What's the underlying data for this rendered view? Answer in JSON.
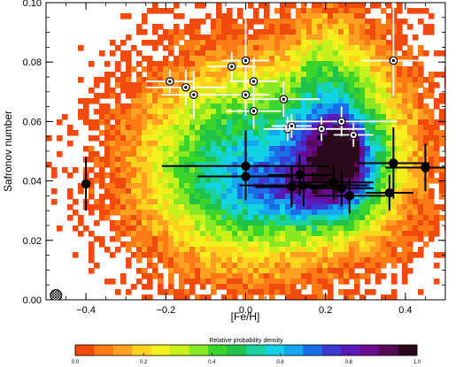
{
  "chart_data": {
    "type": "scatter",
    "xlabel": "[Fe/H]",
    "ylabel": "Safronov number",
    "xlim": [
      -0.5,
      0.5
    ],
    "ylim": [
      0.0,
      0.1
    ],
    "xticks": [
      -0.4,
      -0.2,
      0.0,
      0.2,
      0.4
    ],
    "xtick_labels": [
      "−0.4",
      "−0.2",
      "0.0",
      "0.2",
      "0.4"
    ],
    "yticks": [
      0.0,
      0.02,
      0.04,
      0.06,
      0.08,
      0.1
    ],
    "ytick_labels": [
      "0.00",
      "0.02",
      "0.04",
      "0.06",
      "0.08",
      "0.10"
    ],
    "density_background": {
      "blobs": [
        {
          "x": 0.07,
          "y": 0.048,
          "sx": 0.24,
          "sy": 0.026,
          "w": 0.7
        },
        {
          "x": 0.23,
          "y": 0.044,
          "sx": 0.08,
          "sy": 0.012,
          "w": 0.55
        },
        {
          "x": 0.25,
          "y": 0.05,
          "sx": 0.03,
          "sy": 0.006,
          "w": 0.4
        },
        {
          "x": 0.2,
          "y": 0.068,
          "sx": 0.06,
          "sy": 0.02,
          "w": 0.3
        },
        {
          "x": 0.1,
          "y": 0.035,
          "sx": 0.12,
          "sy": 0.008,
          "w": 0.25
        },
        {
          "x": -0.05,
          "y": 0.04,
          "sx": 0.15,
          "sy": 0.02,
          "w": 0.25
        },
        {
          "x": 0.3,
          "y": 0.06,
          "sx": 0.08,
          "sy": 0.025,
          "w": 0.2
        }
      ]
    },
    "colorbar": {
      "title": "Relative probability density",
      "ticks": [
        0.0,
        0.2,
        0.4,
        0.6,
        0.8,
        1.0
      ],
      "tick_labels": [
        "0.0",
        "0.2",
        "0.4",
        "0.6",
        "0.8",
        "1.0"
      ],
      "colors": [
        "#f04a0c",
        "#ff7a14",
        "#ffa020",
        "#ffd21e",
        "#f4f01e",
        "#c8f01a",
        "#8ae822",
        "#3ad42a",
        "#20c24a",
        "#18d2a0",
        "#12d2e6",
        "#14a6ee",
        "#1a6ee8",
        "#3a3ad2",
        "#5a1ab8",
        "#6a0a90",
        "#540a54",
        "#2a0a1a"
      ]
    },
    "series": [
      {
        "marker": "filled-circle",
        "color": "#000000",
        "points": [
          {
            "x": -0.4,
            "y": 0.039,
            "xerr": 0.01,
            "yerr_lo": 0.009,
            "yerr_hi": 0.009
          },
          {
            "x": 0.0,
            "y": 0.045,
            "xerr": 0.21,
            "yerr_lo": 0.008,
            "yerr_hi": 0.012
          },
          {
            "x": 0.0,
            "y": 0.0415,
            "xerr": 0.12,
            "yerr_lo": 0.008,
            "yerr_hi": 0.008
          },
          {
            "x": 0.115,
            "y": 0.038,
            "xerr": 0.09,
            "yerr_lo": 0.007,
            "yerr_hi": 0.007
          },
          {
            "x": 0.135,
            "y": 0.042,
            "xerr": 0.08,
            "yerr_lo": 0.007,
            "yerr_hi": 0.007
          },
          {
            "x": 0.145,
            "y": 0.0385,
            "xerr": 0.16,
            "yerr_lo": 0.007,
            "yerr_hi": 0.007
          },
          {
            "x": 0.22,
            "y": 0.0395,
            "xerr": 0.1,
            "yerr_lo": 0.006,
            "yerr_hi": 0.006
          },
          {
            "x": 0.24,
            "y": 0.0375,
            "xerr": 0.08,
            "yerr_lo": 0.006,
            "yerr_hi": 0.006
          },
          {
            "x": 0.26,
            "y": 0.035,
            "xerr": 0.09,
            "yerr_lo": 0.006,
            "yerr_hi": 0.006
          },
          {
            "x": 0.36,
            "y": 0.036,
            "xerr": 0.06,
            "yerr_lo": 0.006,
            "yerr_hi": 0.006
          },
          {
            "x": 0.37,
            "y": 0.046,
            "xerr": 0.09,
            "yerr_lo": 0.012,
            "yerr_hi": 0.012
          },
          {
            "x": 0.45,
            "y": 0.0445,
            "xerr": 0.1,
            "yerr_lo": 0.008,
            "yerr_hi": 0.008
          }
        ]
      },
      {
        "marker": "open-circle",
        "color": "#ffffff",
        "points": [
          {
            "x": -0.19,
            "y": 0.0735,
            "xerr": 0.06,
            "yerr_lo": 0.004,
            "yerr_hi": 0.004
          },
          {
            "x": -0.15,
            "y": 0.0715,
            "xerr": 0.1,
            "yerr_lo": 0.006,
            "yerr_hi": 0.006
          },
          {
            "x": -0.13,
            "y": 0.069,
            "xerr": 0.08,
            "yerr_lo": 0.008,
            "yerr_hi": 0.008
          },
          {
            "x": -0.035,
            "y": 0.0785,
            "xerr": 0.06,
            "yerr_lo": 0.005,
            "yerr_hi": 0.005
          },
          {
            "x": 0.0,
            "y": 0.0805,
            "xerr": 0.06,
            "yerr_lo": 0.008,
            "yerr_hi": 0.014
          },
          {
            "x": 0.02,
            "y": 0.0735,
            "xerr": 0.06,
            "yerr_lo": 0.008,
            "yerr_hi": 0.008
          },
          {
            "x": 0.0,
            "y": 0.069,
            "xerr": 0.06,
            "yerr_lo": 0.007,
            "yerr_hi": 0.007
          },
          {
            "x": 0.02,
            "y": 0.0635,
            "xerr": 0.07,
            "yerr_lo": 0.006,
            "yerr_hi": 0.006
          },
          {
            "x": 0.095,
            "y": 0.0675,
            "xerr": 0.09,
            "yerr_lo": 0.006,
            "yerr_hi": 0.006
          },
          {
            "x": 0.105,
            "y": 0.0575,
            "xerr": 0.06,
            "yerr_lo": 0.004,
            "yerr_hi": 0.004
          },
          {
            "x": 0.115,
            "y": 0.0585,
            "xerr": 0.05,
            "yerr_lo": 0.004,
            "yerr_hi": 0.004
          },
          {
            "x": 0.19,
            "y": 0.0575,
            "xerr": 0.11,
            "yerr_lo": 0.004,
            "yerr_hi": 0.004
          },
          {
            "x": 0.24,
            "y": 0.06,
            "xerr": 0.14,
            "yerr_lo": 0.005,
            "yerr_hi": 0.005
          },
          {
            "x": 0.27,
            "y": 0.0555,
            "xerr": 0.05,
            "yerr_lo": 0.004,
            "yerr_hi": 0.004
          },
          {
            "x": 0.37,
            "y": 0.0805,
            "xerr": 0.08,
            "yerr_lo": 0.012,
            "yerr_hi": 0.02
          }
        ]
      }
    ],
    "resolution_marker": {
      "x": -0.475,
      "y": 0.0015,
      "style": "hatched-circle"
    }
  }
}
